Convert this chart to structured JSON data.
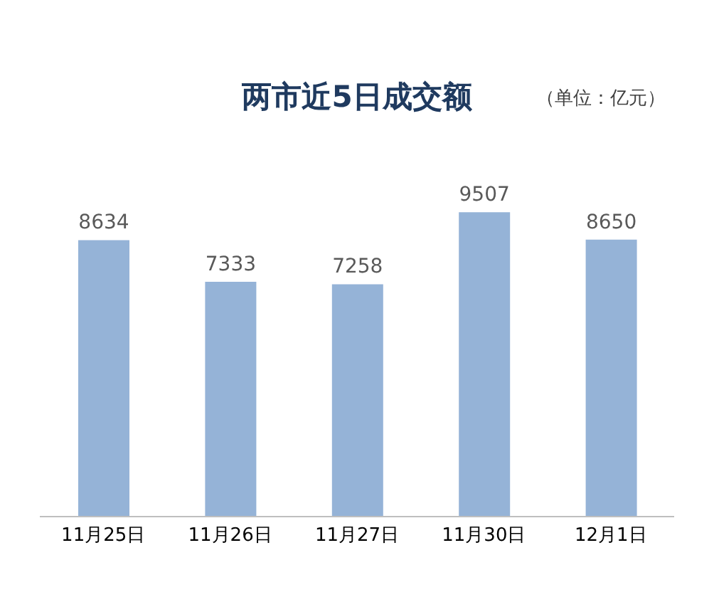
{
  "chart_data": {
    "type": "bar",
    "title": "两市近5日成交额",
    "subtitle": "（单位：亿元）",
    "categories": [
      "11月25日",
      "11月26日",
      "11月27日",
      "11月30日",
      "12月1日"
    ],
    "values": [
      8634,
      7333,
      7258,
      9507,
      8650
    ],
    "color": "#95b3d7",
    "data_labels": true,
    "grid": false,
    "legend": false
  }
}
